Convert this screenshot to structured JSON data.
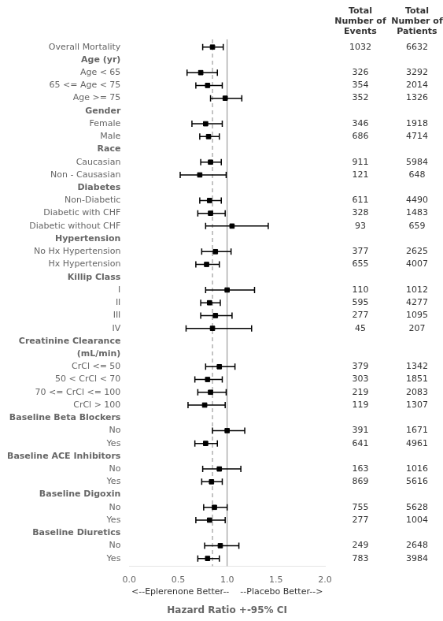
{
  "chart_data": {
    "type": "forest",
    "categories": [
      "Overall Mortality",
      "Age (yr)",
      "Age < 65",
      "65 <= Age < 75",
      "Age >= 75",
      "Gender",
      "Female",
      "Male",
      "Race",
      "Caucasian",
      "Non - Causasian",
      "Diabetes",
      "Non-Diabetic",
      "Diabetic with CHF",
      "Diabetic without CHF",
      "Hypertension",
      "No Hx Hypertension",
      "Hx Hypertension",
      "Killip Class",
      "I",
      "II",
      "III",
      "IV",
      "Creatinine Clearance",
      "(mL/min)",
      "CrCl <= 50",
      "50 < CrCl < 70",
      "70 <= CrCl <= 100",
      "CrCl > 100",
      "Baseline Beta Blockers",
      "No",
      "Yes",
      "Baseline ACE Inhibitors",
      "No",
      "Yes",
      "Baseline Digoxin",
      "No",
      "Yes",
      "Baseline Diuretics",
      "No",
      "Yes"
    ],
    "values": [
      0.85,
      null,
      0.73,
      0.8,
      0.98,
      null,
      0.78,
      0.81,
      null,
      0.83,
      0.72,
      null,
      0.82,
      0.83,
      1.05,
      null,
      0.88,
      0.79,
      null,
      1.0,
      0.82,
      0.88,
      0.85,
      null,
      null,
      0.92,
      0.8,
      0.83,
      0.77,
      null,
      1.0,
      0.78,
      null,
      0.92,
      0.84,
      null,
      0.87,
      0.82,
      null,
      0.93,
      0.8
    ],
    "ci_low": [
      0.75,
      null,
      0.59,
      0.68,
      0.83,
      null,
      0.64,
      0.72,
      null,
      0.73,
      0.52,
      null,
      0.72,
      0.7,
      0.78,
      null,
      0.74,
      0.68,
      null,
      0.78,
      0.73,
      0.73,
      0.58,
      null,
      null,
      0.78,
      0.67,
      0.7,
      0.6,
      null,
      0.85,
      0.67,
      null,
      0.75,
      0.74,
      null,
      0.76,
      0.68,
      null,
      0.77,
      0.7
    ],
    "ci_high": [
      0.96,
      null,
      0.9,
      0.95,
      1.15,
      null,
      0.95,
      0.92,
      null,
      0.94,
      0.99,
      null,
      0.94,
      0.98,
      1.42,
      null,
      1.04,
      0.92,
      null,
      1.28,
      0.93,
      1.05,
      1.25,
      null,
      null,
      1.08,
      0.95,
      0.99,
      0.98,
      null,
      1.18,
      0.9,
      null,
      1.14,
      0.95,
      null,
      1.0,
      0.98,
      null,
      1.12,
      0.92
    ],
    "color": "#000000",
    "columns": [
      {
        "name": "Total\nNumber of\nEvents",
        "values": [
          1032,
          null,
          326,
          354,
          352,
          null,
          346,
          686,
          null,
          911,
          121,
          null,
          611,
          328,
          93,
          null,
          377,
          655,
          null,
          110,
          595,
          277,
          45,
          null,
          null,
          379,
          303,
          219,
          119,
          null,
          391,
          641,
          null,
          163,
          869,
          null,
          755,
          277,
          null,
          249,
          783
        ]
      },
      {
        "name": "Total\nNumber of\nPatients",
        "values": [
          6632,
          null,
          3292,
          2014,
          1326,
          null,
          1918,
          4714,
          null,
          5984,
          648,
          null,
          4490,
          1483,
          659,
          null,
          2625,
          4007,
          null,
          1012,
          4277,
          1095,
          207,
          null,
          null,
          1342,
          1851,
          2083,
          1307,
          null,
          1671,
          4961,
          null,
          1016,
          5616,
          null,
          5628,
          1004,
          null,
          2648,
          3984
        ]
      }
    ],
    "reference_lines": [
      {
        "value": 1.0,
        "line_style": "solid"
      },
      {
        "value": 0.85,
        "line_style": "dashed"
      }
    ],
    "xlim": [
      0.0,
      2.0
    ],
    "xticks": [
      {
        "value": 0,
        "label": "0.0"
      },
      0.5,
      {
        "value": 1,
        "label": "1.0"
      },
      1.5,
      {
        "value": 2,
        "label": "2.0"
      }
    ],
    "annotations": [
      "<--Eplerenone Better--    --Placebo Better-->"
    ],
    "xlabel": "Hazard Ratio +-95% CI",
    "grid": false
  }
}
